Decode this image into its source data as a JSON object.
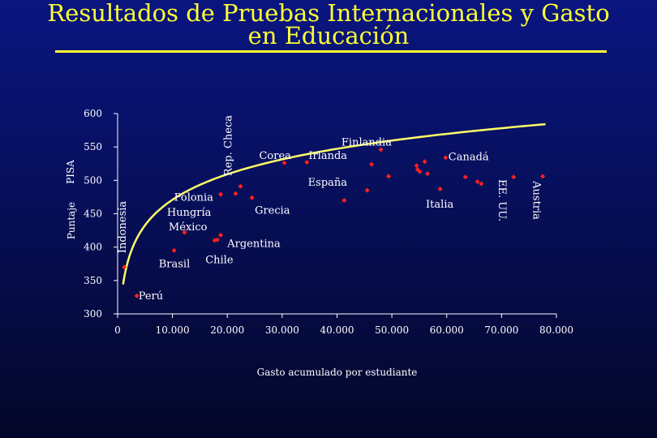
{
  "title": {
    "line1": "Resultados de Pruebas Internacionales y Gasto",
    "line2": "en Educación"
  },
  "colors": {
    "title": "#ffff33",
    "point": "#ff2020",
    "trend": "#ffff66",
    "axis": "#ffffff"
  },
  "chart_data": {
    "type": "scatter",
    "title": "Resultados de Pruebas Internacionales y Gasto en Educación",
    "xlabel": "Gasto acumulado por estudiante",
    "ylabel_lines": [
      "Puntaje",
      "PISA"
    ],
    "xlim": [
      0,
      80000
    ],
    "ylim": [
      300,
      600
    ],
    "xticks": [
      0,
      10000,
      20000,
      30000,
      40000,
      50000,
      60000,
      70000,
      80000
    ],
    "xtick_labels": [
      "0",
      "10.000",
      "20.000",
      "30.000",
      "40.000",
      "50.000",
      "60.000",
      "70.000",
      "80.000"
    ],
    "yticks": [
      300,
      350,
      400,
      450,
      500,
      550,
      600
    ],
    "ytick_labels": [
      "300",
      "350",
      "400",
      "450",
      "500",
      "550",
      "600"
    ],
    "grid": false,
    "legend": "none",
    "points": [
      {
        "x": 1200,
        "y": 370
      },
      {
        "x": 3500,
        "y": 327
      },
      {
        "x": 10300,
        "y": 395
      },
      {
        "x": 12200,
        "y": 422
      },
      {
        "x": 17700,
        "y": 410
      },
      {
        "x": 18200,
        "y": 411
      },
      {
        "x": 18800,
        "y": 418
      },
      {
        "x": 18800,
        "y": 479
      },
      {
        "x": 21500,
        "y": 480
      },
      {
        "x": 22400,
        "y": 491
      },
      {
        "x": 24500,
        "y": 474
      },
      {
        "x": 30400,
        "y": 526
      },
      {
        "x": 34500,
        "y": 527
      },
      {
        "x": 41300,
        "y": 470
      },
      {
        "x": 45500,
        "y": 485
      },
      {
        "x": 46300,
        "y": 524
      },
      {
        "x": 48000,
        "y": 546
      },
      {
        "x": 49400,
        "y": 506
      },
      {
        "x": 54500,
        "y": 522
      },
      {
        "x": 54700,
        "y": 516
      },
      {
        "x": 55100,
        "y": 513
      },
      {
        "x": 56000,
        "y": 528
      },
      {
        "x": 56500,
        "y": 510
      },
      {
        "x": 58800,
        "y": 487
      },
      {
        "x": 59800,
        "y": 534
      },
      {
        "x": 63400,
        "y": 505
      },
      {
        "x": 65600,
        "y": 498
      },
      {
        "x": 66300,
        "y": 495
      },
      {
        "x": 72200,
        "y": 505
      },
      {
        "x": 77500,
        "y": 506
      }
    ],
    "point_labels": [
      {
        "text": "Perú",
        "x": 3800,
        "y": 327
      },
      {
        "text": "Brasil",
        "x": 7500,
        "y": 375
      },
      {
        "text": "Chile",
        "x": 16000,
        "y": 381
      },
      {
        "text": "Argentina",
        "x": 20000,
        "y": 405
      },
      {
        "text": "México",
        "x": 9300,
        "y": 430
      },
      {
        "text": "Hungría",
        "x": 9000,
        "y": 452
      },
      {
        "text": "Polonia",
        "x": 10300,
        "y": 474
      },
      {
        "text": "Grecia",
        "x": 25000,
        "y": 455
      },
      {
        "text": "Corea",
        "x": 25800,
        "y": 537
      },
      {
        "text": "Irlanda",
        "x": 34800,
        "y": 537
      },
      {
        "text": "Finlandia",
        "x": 40800,
        "y": 557
      },
      {
        "text": "España",
        "x": 34700,
        "y": 497
      },
      {
        "text": "Canadá",
        "x": 60300,
        "y": 535
      },
      {
        "text": "Italia",
        "x": 56200,
        "y": 464
      }
    ],
    "vertical_labels": [
      {
        "text": "Indonesia",
        "x": 1500,
        "y": 430
      },
      {
        "text": "Rep. Checa",
        "x": 20800,
        "y": 552
      },
      {
        "text": "EE. UU.",
        "x": 69500,
        "y": 470
      },
      {
        "text": "Austria",
        "x": 75800,
        "y": 470
      }
    ],
    "trend": {
      "type": "log",
      "a": -36.4,
      "b": 55.08,
      "x_start": 1000,
      "x_end": 78000
    }
  }
}
